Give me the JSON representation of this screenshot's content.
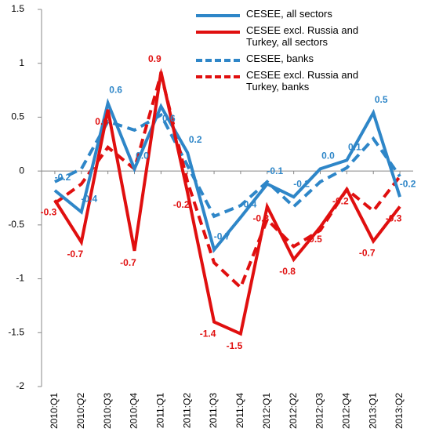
{
  "chart_data": {
    "type": "line",
    "categories": [
      "2010:Q1",
      "2010:Q2",
      "2010:Q3",
      "2010:Q4",
      "2011:Q1",
      "2011:Q2",
      "2011:Q3",
      "2011:Q4",
      "2012:Q1",
      "2012:Q2",
      "2012:Q3",
      "2012:Q4",
      "2013:Q1",
      "2013:Q2"
    ],
    "series": [
      {
        "name": "CESEE, all sectors",
        "color": "#2e86c8",
        "dash": false,
        "values": [
          -0.18,
          -0.38,
          0.63,
          0.02,
          0.6,
          0.17,
          -0.73,
          -0.43,
          -0.12,
          -0.24,
          0.02,
          0.1,
          0.54,
          -0.24
        ],
        "value_labels": [
          "-0.2",
          "-0.4",
          "0.6",
          "0.0",
          "0.6",
          "0.2",
          "-0.7",
          "-0.4",
          "-0.1",
          "-0.2",
          "0.0",
          "0.1",
          "0.5",
          "-0.2"
        ]
      },
      {
        "name": "CESEE excl. Russia and Turkey, all sectors",
        "color": "#e00f0f",
        "dash": false,
        "values": [
          -0.27,
          -0.66,
          0.57,
          -0.74,
          0.92,
          -0.2,
          -1.4,
          -1.51,
          -0.33,
          -0.82,
          -0.52,
          -0.17,
          -0.65,
          -0.33
        ],
        "value_labels": [
          "-0.3",
          "-0.7",
          "0.6",
          "-0.7",
          "0.9",
          "-0.2",
          "-1.4",
          "-1.5",
          "-0.3",
          "-0.8",
          "-0.5",
          "-0.2",
          "-0.7",
          "-0.3"
        ]
      },
      {
        "name": "CESEE, banks",
        "color": "#2e86c8",
        "dash": true,
        "values": [
          -0.1,
          0.02,
          0.46,
          0.38,
          0.52,
          0.05,
          -0.42,
          -0.32,
          -0.1,
          -0.33,
          -0.1,
          0.03,
          0.3,
          -0.05
        ]
      },
      {
        "name": "CESEE excl. Russia and Turkey, banks",
        "color": "#e00f0f",
        "dash": true,
        "values": [
          -0.3,
          -0.12,
          0.22,
          0.02,
          0.9,
          -0.1,
          -0.85,
          -1.08,
          -0.45,
          -0.7,
          -0.55,
          -0.17,
          -0.37,
          -0.05
        ]
      }
    ],
    "ylim": [
      -2,
      1.5
    ],
    "yticks": [
      -2,
      -1.5,
      -1,
      -0.5,
      0,
      0.5,
      1,
      1.5
    ],
    "legend": "top-right"
  }
}
